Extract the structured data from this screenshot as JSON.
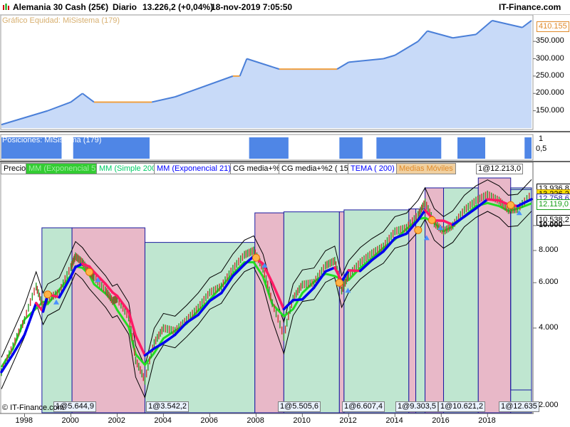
{
  "header": {
    "instrument": "Alemania 30 Cash (25€)",
    "period": "Diario",
    "last": "13.226,2 (+0,04%)",
    "datetime": "18-nov-2019 7:05:50",
    "brand": "IT-Finance.com"
  },
  "equity_panel": {
    "label": "Gráfico Equidad: MiSistema (179)",
    "value_box": "410.155",
    "ticks": [
      "350.000",
      "300.000",
      "250.000",
      "200.000",
      "150.000"
    ]
  },
  "positions_panel": {
    "label": "Posiciones: MiSistema (179)",
    "ticks": [
      "1",
      "0,5"
    ]
  },
  "price_panel": {
    "legend": [
      {
        "label": "Precio",
        "color": "#000000"
      },
      {
        "label": "MM (Exponencial 5)",
        "color": "#33cc33"
      },
      {
        "label": "MM (Simple 200)",
        "color": "#00cc66"
      },
      {
        "label": "MM (Exponencial 21)",
        "color": "#0000ff"
      },
      {
        "label": "CG media+%",
        "color": "#000000"
      },
      {
        "label": "CG media+%2 ( 15)",
        "color": "#000000"
      },
      {
        "label": "TEMA ( 200)",
        "color": "#0000ff"
      },
      {
        "label": "Medias Móviles",
        "color": "#e08a2a"
      }
    ],
    "last_trade_tag": "1@12.213,0",
    "price_boxes": [
      "13.936,8",
      "13.226,2",
      "12.758,6",
      "12.119,0",
      "10.538,2"
    ],
    "y_ticks": [
      "10.000",
      "8.000",
      "6.000",
      "4.000",
      "2.000"
    ],
    "x_ticks": [
      "1998",
      "2000",
      "2002",
      "2004",
      "2006",
      "2008",
      "2010",
      "2012",
      "2014",
      "2016",
      "2018"
    ],
    "trade_tags": [
      "1@5.644,9",
      "1@3.542,2",
      "1@5.505,6",
      "1@6.607,4",
      "1@9.303,5",
      "1@10.621,2",
      "1@12.635"
    ],
    "copyright": "© IT-Finance.com"
  },
  "colors": {
    "equity_fill": "#c8daf8",
    "equity_line": "#4a7fd8",
    "equity_flat": "#f0a040",
    "position_fill": "#4f86e6",
    "long_zone": "#bfe6d0",
    "short_zone": "#e8b8c8",
    "ema_fast": "#22dd22",
    "ema_slow": "#0000ee",
    "ema_falling": "#ff1a66"
  },
  "chart_data": {
    "type": "line",
    "title": "Alemania 30 Cash (25€) - Diario",
    "x_range": [
      1997.0,
      2019.9
    ],
    "y_range_log": [
      1900,
      15500
    ],
    "series": [
      {
        "name": "Precio",
        "x": [
          1997.0,
          1997.5,
          1998.0,
          1998.5,
          1998.8,
          1999.0,
          1999.5,
          2000.0,
          2000.2,
          2000.5,
          2000.8,
          2001.0,
          2001.5,
          2001.8,
          2002.0,
          2002.5,
          2002.8,
          2003.2,
          2003.6,
          2004.0,
          2004.5,
          2005.0,
          2005.5,
          2006.0,
          2006.5,
          2007.0,
          2007.5,
          2007.9,
          2008.3,
          2008.7,
          2009.2,
          2009.6,
          2010.0,
          2010.5,
          2011.0,
          2011.4,
          2011.7,
          2012.0,
          2012.5,
          2013.0,
          2013.5,
          2014.0,
          2014.5,
          2015.0,
          2015.3,
          2015.7,
          2016.1,
          2016.5,
          2017.0,
          2017.5,
          2018.0,
          2018.5,
          2018.9,
          2019.3,
          2019.9
        ],
        "y": [
          2700,
          3400,
          4300,
          5800,
          4800,
          5200,
          5500,
          6900,
          7600,
          7200,
          6600,
          6300,
          5600,
          5100,
          5200,
          4400,
          3000,
          2500,
          3500,
          4000,
          3900,
          4300,
          4800,
          5500,
          5800,
          6800,
          7700,
          8000,
          6800,
          5000,
          3700,
          5200,
          5900,
          6000,
          7000,
          7300,
          5600,
          6400,
          7200,
          7800,
          8300,
          9500,
          9800,
          11000,
          12300,
          10200,
          9500,
          10000,
          11500,
          12500,
          13200,
          12500,
          11500,
          11600,
          13226
        ]
      },
      {
        "name": "MM (Exponencial 21)",
        "x": [
          2000.0,
          2000.5,
          2001.0,
          2001.5,
          2002.0,
          2002.5
        ],
        "y": [
          7500,
          7000,
          6400,
          5600,
          5100,
          4300
        ]
      },
      {
        "name": "MM (Exponencial 5)",
        "x": [
          1997.0,
          1999.0,
          2000.5,
          2003.5,
          2006.0,
          2008.0,
          2009.5,
          2011.5,
          2013.0,
          2015.0,
          2016.5,
          2018.5,
          2019.9
        ],
        "y": [
          2500,
          4500,
          6500,
          2500,
          4800,
          6800,
          4000,
          6500,
          7500,
          10000,
          9700,
          12000,
          13000
        ]
      },
      {
        "name": "Gráfico Equidad: MiSistema (179)",
        "x": [
          1997.0,
          1999.0,
          2000.0,
          2000.5,
          2001.0,
          2003.5,
          2004.5,
          2007.0,
          2007.3,
          2007.6,
          2009.0,
          2009.5,
          2011.5,
          2012.0,
          2013.5,
          2014.0,
          2015.0,
          2015.4,
          2016.5,
          2017.5,
          2018.2,
          2019.5,
          2019.9
        ],
        "y": [
          110000,
          150000,
          175000,
          200000,
          175000,
          175000,
          190000,
          250000,
          250000,
          300000,
          270000,
          270000,
          270000,
          290000,
          300000,
          310000,
          350000,
          380000,
          360000,
          370000,
          410000,
          390000,
          410155
        ]
      }
    ],
    "trades": [
      "1@5.644,9",
      "1@3.542,2",
      "1@5.505,6",
      "1@6.607,4",
      "1@9.303,5",
      "1@10.621,2",
      "1@12.635",
      "1@12.213,0"
    ]
  }
}
